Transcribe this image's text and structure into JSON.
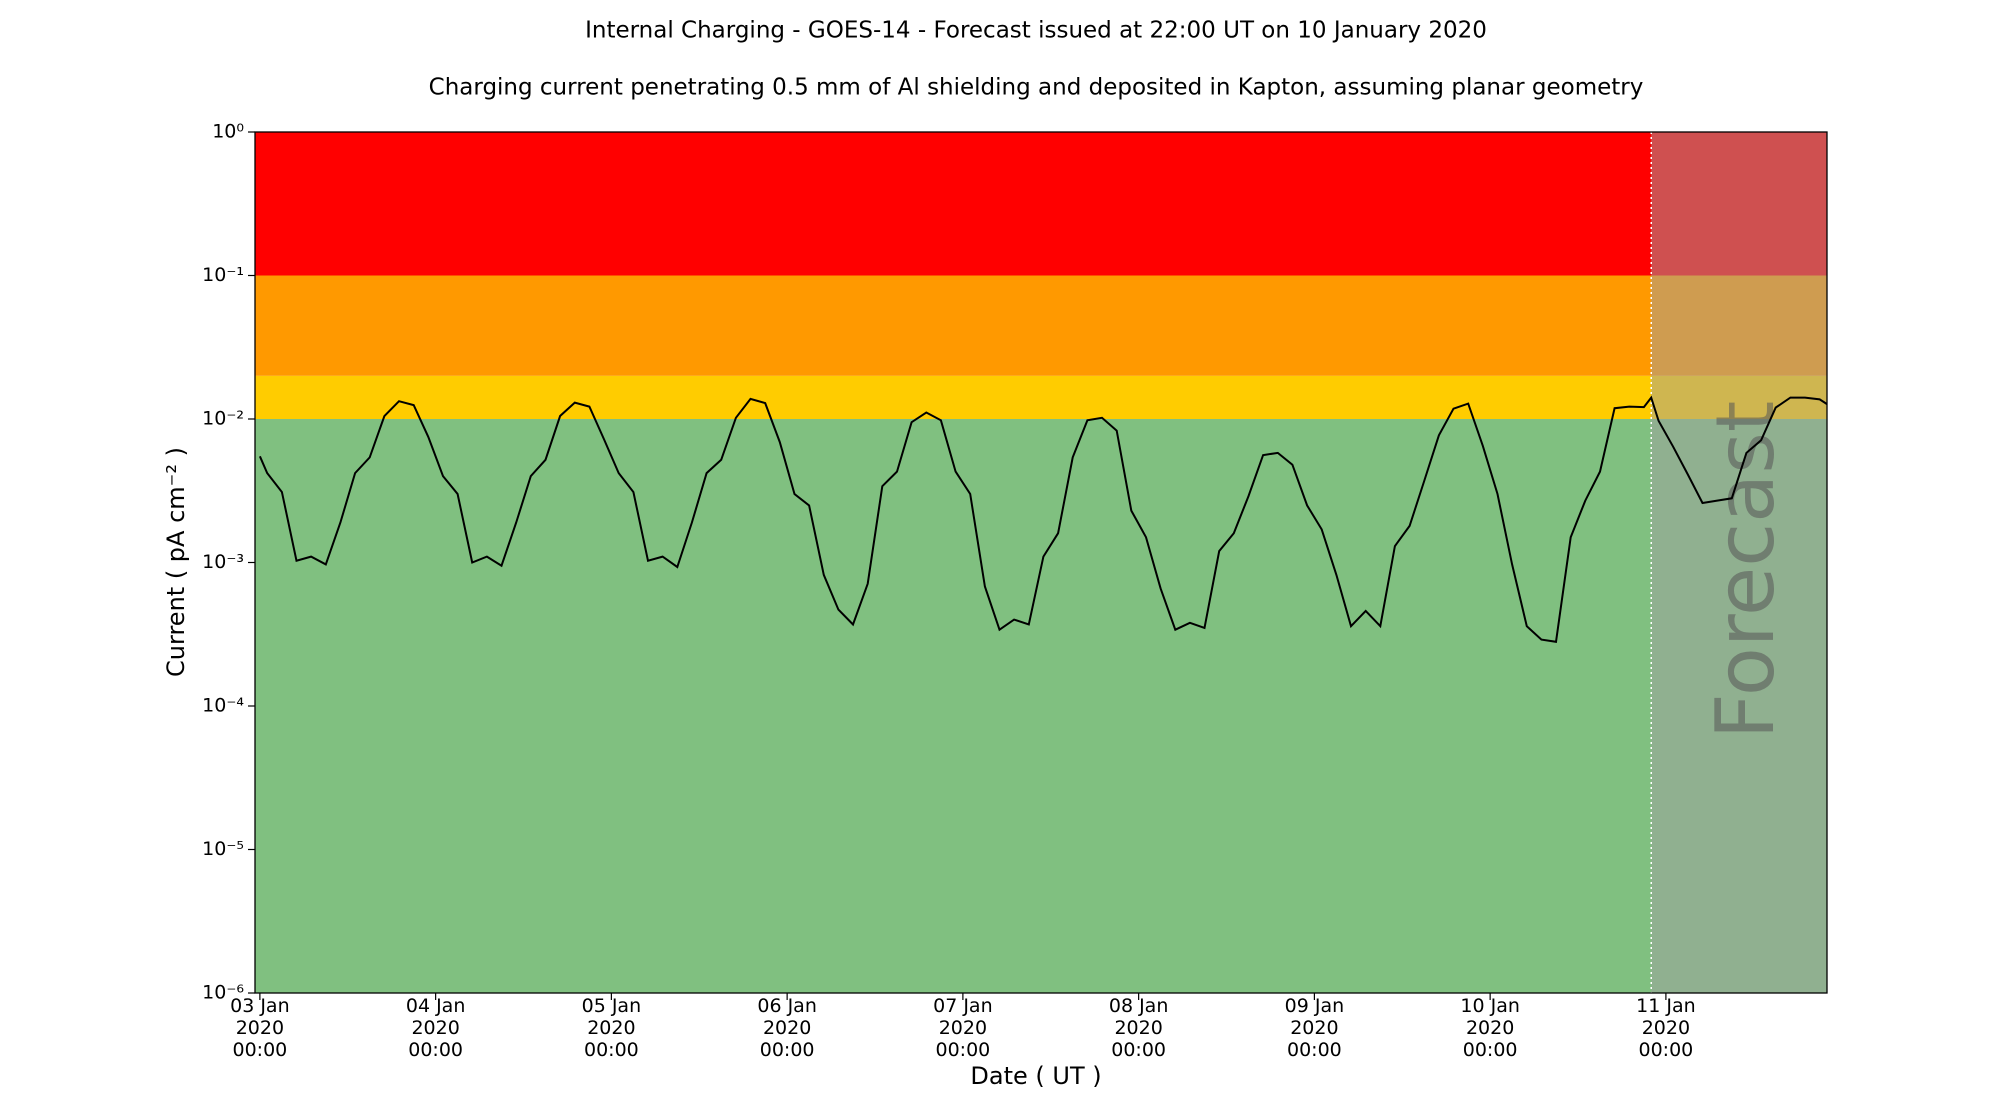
{
  "chart_data": {
    "type": "line",
    "title": "Internal Charging - GOES-14 - Forecast issued at 22:00 UT on 10 January 2020",
    "subtitle": "Charging current penetrating 0.5 mm of Al shielding and deposited in Kapton, assuming planar geometry",
    "x_label": "Date ( UT )",
    "y_label": "Current ( pA cm⁻² )",
    "log_y": true,
    "color": "#000000",
    "thresholds": [
      0.01,
      0.02,
      0.1
    ],
    "zone_colors": [
      "#80c080",
      "#ffcc00",
      "#ff9900",
      "#ff0000"
    ],
    "forecast_start": "2020-01-10T22:00",
    "forecast_label": "Forecast",
    "forecast_color": "#a0a0a0",
    "xlim": [
      "2020-01-02T23:20",
      "2020-01-11T22:00"
    ],
    "ylim": [
      1e-06,
      1
    ],
    "yticks": [
      {
        "value": 1e-06,
        "label": "10⁻⁶"
      },
      {
        "value": 1e-05,
        "label": "10⁻⁵"
      },
      {
        "value": 0.0001,
        "label": "10⁻⁴"
      },
      {
        "value": 0.001,
        "label": "10⁻³"
      },
      {
        "value": 0.01,
        "label": "10⁻²"
      },
      {
        "value": 0.1,
        "label": "10⁻¹"
      },
      {
        "value": 1,
        "label": "10⁰"
      }
    ],
    "xticks": [
      {
        "value": "2020-01-03T00:00",
        "label": "03 Jan\n2020\n00:00"
      },
      {
        "value": "2020-01-04T00:00",
        "label": "04 Jan\n2020\n00:00"
      },
      {
        "value": "2020-01-05T00:00",
        "label": "05 Jan\n2020\n00:00"
      },
      {
        "value": "2020-01-06T00:00",
        "label": "06 Jan\n2020\n00:00"
      },
      {
        "value": "2020-01-07T00:00",
        "label": "07 Jan\n2020\n00:00"
      },
      {
        "value": "2020-01-08T00:00",
        "label": "08 Jan\n2020\n00:00"
      },
      {
        "value": "2020-01-09T00:00",
        "label": "09 Jan\n2020\n00:00"
      },
      {
        "value": "2020-01-10T00:00",
        "label": "10 Jan\n2020\n00:00"
      },
      {
        "value": "2020-01-11T00:00",
        "label": "11 Jan\n2020\n00:00"
      }
    ],
    "x": [
      "2020-01-03T00:00",
      "2020-01-03T01:00",
      "2020-01-03T03:00",
      "2020-01-03T05:00",
      "2020-01-03T07:00",
      "2020-01-03T09:00",
      "2020-01-03T11:00",
      "2020-01-03T13:00",
      "2020-01-03T15:00",
      "2020-01-03T17:00",
      "2020-01-03T19:00",
      "2020-01-03T21:00",
      "2020-01-03T23:00",
      "2020-01-04T01:00",
      "2020-01-04T03:00",
      "2020-01-04T05:00",
      "2020-01-04T07:00",
      "2020-01-04T09:00",
      "2020-01-04T11:00",
      "2020-01-04T13:00",
      "2020-01-04T15:00",
      "2020-01-04T17:00",
      "2020-01-04T19:00",
      "2020-01-04T21:00",
      "2020-01-04T23:00",
      "2020-01-05T01:00",
      "2020-01-05T03:00",
      "2020-01-05T05:00",
      "2020-01-05T07:00",
      "2020-01-05T09:00",
      "2020-01-05T11:00",
      "2020-01-05T13:00",
      "2020-01-05T15:00",
      "2020-01-05T17:00",
      "2020-01-05T19:00",
      "2020-01-05T21:00",
      "2020-01-05T23:00",
      "2020-01-06T01:00",
      "2020-01-06T03:00",
      "2020-01-06T05:00",
      "2020-01-06T07:00",
      "2020-01-06T09:00",
      "2020-01-06T11:00",
      "2020-01-06T13:00",
      "2020-01-06T15:00",
      "2020-01-06T17:00",
      "2020-01-06T19:00",
      "2020-01-06T21:00",
      "2020-01-06T23:00",
      "2020-01-07T01:00",
      "2020-01-07T03:00",
      "2020-01-07T05:00",
      "2020-01-07T07:00",
      "2020-01-07T09:00",
      "2020-01-07T11:00",
      "2020-01-07T13:00",
      "2020-01-07T15:00",
      "2020-01-07T17:00",
      "2020-01-07T19:00",
      "2020-01-07T21:00",
      "2020-01-07T23:00",
      "2020-01-08T01:00",
      "2020-01-08T03:00",
      "2020-01-08T05:00",
      "2020-01-08T07:00",
      "2020-01-08T09:00",
      "2020-01-08T11:00",
      "2020-01-08T13:00",
      "2020-01-08T15:00",
      "2020-01-08T17:00",
      "2020-01-08T19:00",
      "2020-01-08T21:00",
      "2020-01-08T23:00",
      "2020-01-09T01:00",
      "2020-01-09T03:00",
      "2020-01-09T05:00",
      "2020-01-09T07:00",
      "2020-01-09T09:00",
      "2020-01-09T11:00",
      "2020-01-09T13:00",
      "2020-01-09T15:00",
      "2020-01-09T17:00",
      "2020-01-09T19:00",
      "2020-01-09T21:00",
      "2020-01-09T23:00",
      "2020-01-10T01:00",
      "2020-01-10T03:00",
      "2020-01-10T05:00",
      "2020-01-10T07:00",
      "2020-01-10T09:00",
      "2020-01-10T11:00",
      "2020-01-10T13:00",
      "2020-01-10T15:00",
      "2020-01-10T17:00",
      "2020-01-10T19:00",
      "2020-01-10T21:00",
      "2020-01-10T22:00",
      "2020-01-10T23:00",
      "2020-01-11T01:00",
      "2020-01-11T03:00",
      "2020-01-11T05:00",
      "2020-01-11T07:00",
      "2020-01-11T09:00",
      "2020-01-11T11:00",
      "2020-01-11T13:00",
      "2020-01-11T15:00",
      "2020-01-11T17:00",
      "2020-01-11T19:00",
      "2020-01-11T21:00",
      "2020-01-11T22:00"
    ],
    "values": [
      0.0055,
      0.0042,
      0.0031,
      0.00103,
      0.0011,
      0.00097,
      0.0019,
      0.0042,
      0.0054,
      0.0105,
      0.0133,
      0.0125,
      0.0075,
      0.004,
      0.003,
      0.001,
      0.0011,
      0.00095,
      0.0019,
      0.004,
      0.0052,
      0.0105,
      0.013,
      0.0122,
      0.0072,
      0.0042,
      0.0031,
      0.00103,
      0.0011,
      0.00093,
      0.0019,
      0.0042,
      0.0052,
      0.0102,
      0.0138,
      0.0129,
      0.0069,
      0.003,
      0.0025,
      0.00082,
      0.00047,
      0.00037,
      0.00071,
      0.0034,
      0.0043,
      0.0095,
      0.0111,
      0.0098,
      0.0043,
      0.003,
      0.00068,
      0.00034,
      0.0004,
      0.00037,
      0.0011,
      0.0016,
      0.0054,
      0.0098,
      0.0102,
      0.0083,
      0.0023,
      0.0015,
      0.00066,
      0.00034,
      0.00038,
      0.00035,
      0.0012,
      0.0016,
      0.0029,
      0.0056,
      0.0058,
      0.0048,
      0.0025,
      0.0017,
      0.00082,
      0.00036,
      0.00046,
      0.00036,
      0.0013,
      0.0018,
      0.0037,
      0.0077,
      0.0118,
      0.0128,
      0.0065,
      0.003,
      0.00097,
      0.00036,
      0.00029,
      0.00028,
      0.0015,
      0.0027,
      0.0043,
      0.0119,
      0.0122,
      0.0121,
      0.0141,
      0.0097,
      0.0064,
      0.0041,
      0.0026,
      0.0027,
      0.0028,
      0.0058,
      0.0071,
      0.012,
      0.0141,
      0.0141,
      0.0137,
      0.0127
    ]
  }
}
